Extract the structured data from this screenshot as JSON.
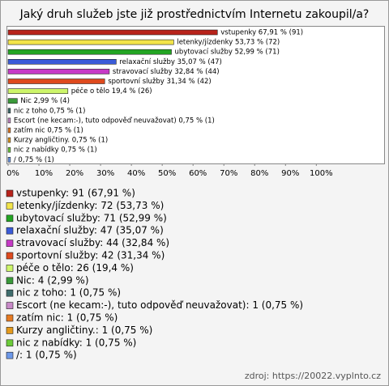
{
  "chart_data": {
    "type": "hbar",
    "title": "Jaký druh služeb jste již prostřednictvím Internetu zakoupil/a?",
    "categories": [
      "vstupenky",
      "letenky/jízdenky",
      "ubytovací služby",
      "relaxační služby",
      "stravovací služby",
      "sportovní služby",
      "péče o tělo",
      "Nic",
      "nic z toho",
      "Escort (ne kecam:-), tuto odpověď neuvažovat)",
      "zatím nic",
      "Kurzy angličtiny.",
      "nic z nabídky",
      "/"
    ],
    "values": [
      67.91,
      53.73,
      52.99,
      35.07,
      32.84,
      31.34,
      19.4,
      2.99,
      0.75,
      0.75,
      0.75,
      0.75,
      0.75,
      0.75
    ],
    "value_labels": [
      "vstupenky 67,91 % (91)",
      "letenky/jízdenky 53,73 % (72)",
      "ubytovací služby 52,99 % (71)",
      "relaxační služby 35,07 % (47)",
      "stravovací služby 32,84 % (44)",
      "sportovní služby 31,34 % (42)",
      "péče o tělo 19,4 % (26)",
      "Nic 2,99 % (4)",
      "nic z toho 0,75 % (1)",
      "Escort (ne kecam:-), tuto odpověď neuvažovat) 0,75 % (1)",
      "zatím nic 0,75 % (1)",
      "Kurzy angličtiny. 0,75 % (1)",
      "nic z nabídky 0,75 % (1)",
      "/ 0,75 % (1)"
    ],
    "legend_labels": [
      "vstupenky: 91 (67,91 %)",
      "letenky/jízdenky: 72 (53,73 %)",
      "ubytovací služby: 71 (52,99 %)",
      "relaxační služby: 47 (35,07 %)",
      "stravovací služby: 44 (32,84 %)",
      "sportovní služby: 42 (31,34 %)",
      "péče o tělo: 26 (19,4 %)",
      "Nic: 4 (2,99 %)",
      "nic z toho: 1 (0,75 %)",
      "Escort (ne kecam:-), tuto odpověď neuvažovat): 1 (0,75 %)",
      "zatím nic: 1 (0,75 %)",
      "Kurzy angličtiny.: 1 (0,75 %)",
      "nic z nabídky: 1 (0,75 %)",
      "/: 1 (0,75 %)"
    ],
    "colors": [
      "#b8231b",
      "#f2e44a",
      "#23a523",
      "#3b5bd8",
      "#c63ac6",
      "#de4a1e",
      "#cdf56a",
      "#3a9a3a",
      "#3f6d6d",
      "#c88ac8",
      "#e67a22",
      "#e49a1c",
      "#6ccc3a",
      "#6c98e8"
    ],
    "xlim": [
      0,
      122
    ],
    "xticks": [
      {
        "value": 0,
        "label": "0%"
      },
      {
        "value": 10,
        "label": "10%"
      },
      {
        "value": 20,
        "label": "20%"
      },
      {
        "value": 30,
        "label": "30%"
      },
      {
        "value": 40,
        "label": "40%"
      },
      {
        "value": 50,
        "label": "50%"
      },
      {
        "value": 60,
        "label": "60%"
      },
      {
        "value": 70,
        "label": "70%"
      },
      {
        "value": 80,
        "label": "80%"
      },
      {
        "value": 90,
        "label": "90%"
      },
      {
        "value": 100,
        "label": "100%"
      }
    ],
    "source": "zdroj: https://20022.vyplnto.cz"
  }
}
